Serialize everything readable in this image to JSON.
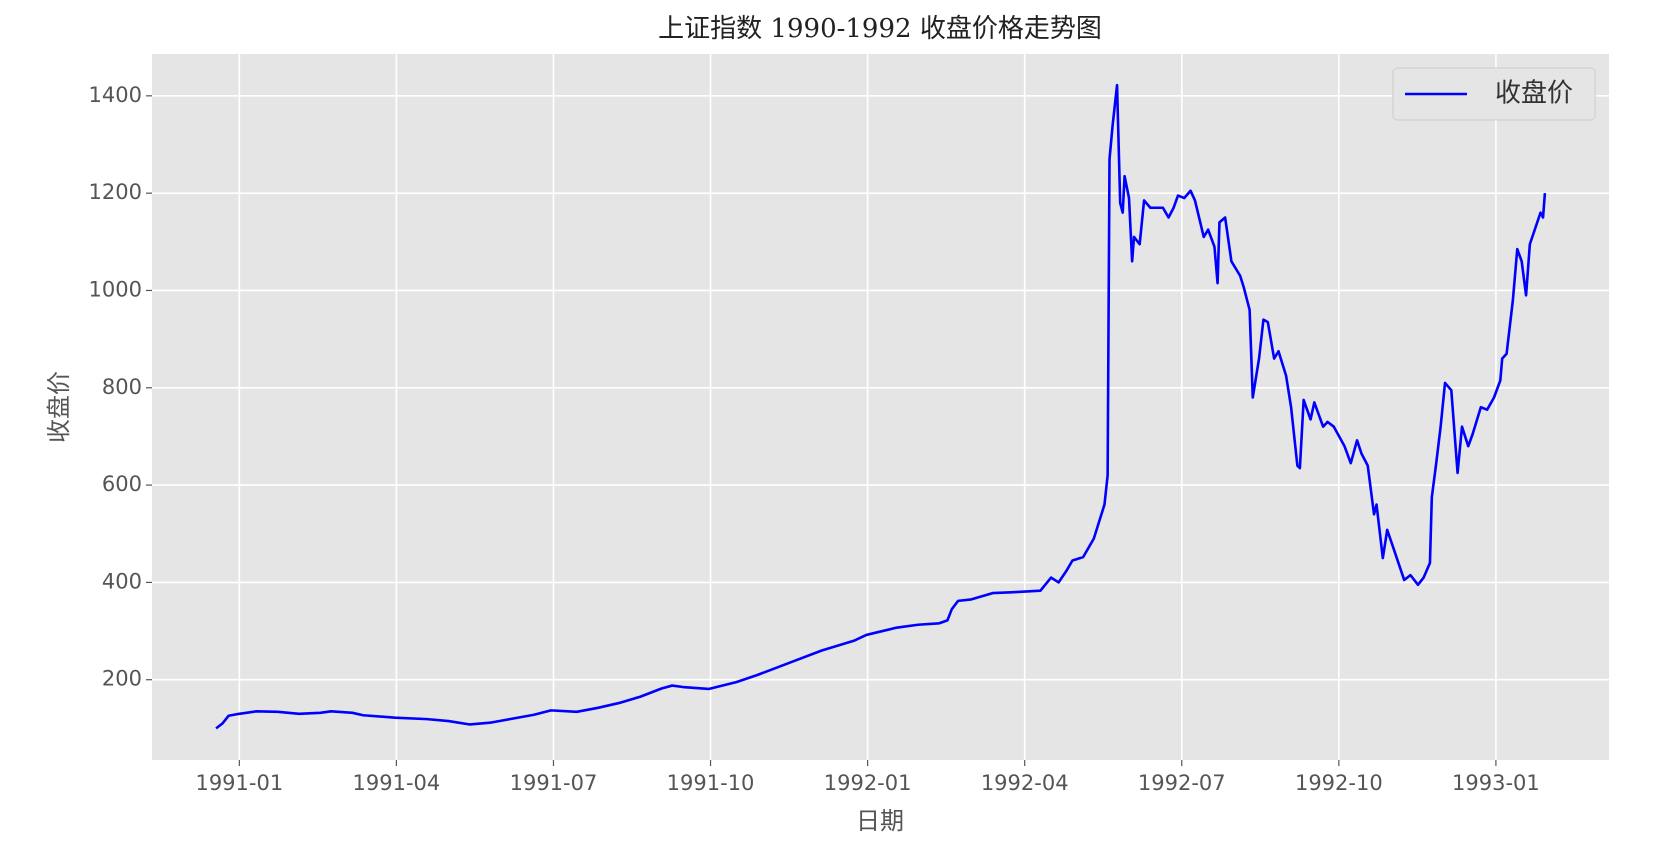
{
  "chart_data": {
    "type": "line",
    "title": "上证指数 1990-1992 收盘价格走势图",
    "x_label": "日期",
    "y_label": "收盘价",
    "x": [
      1990.963,
      1990.973,
      1990.983,
      1991.0,
      1991.027,
      1991.061,
      1991.095,
      1991.129,
      1991.146,
      1991.18,
      1991.197,
      1991.248,
      1991.299,
      1991.333,
      1991.367,
      1991.401,
      1991.435,
      1991.469,
      1991.496,
      1991.537,
      1991.57,
      1991.604,
      1991.638,
      1991.672,
      1991.689,
      1991.706,
      1991.747,
      1991.791,
      1991.825,
      1991.876,
      1991.927,
      1991.978,
      1991.998,
      1992.046,
      1992.08,
      1992.114,
      1992.127,
      1992.134,
      1992.144,
      1992.165,
      1992.199,
      1992.233,
      1992.275,
      1992.292,
      1992.304,
      1992.317,
      1992.326,
      1992.343,
      1992.36,
      1992.377,
      1992.382,
      1992.385,
      1992.39,
      1992.397,
      1992.402,
      1992.406,
      1992.409,
      1992.416,
      1992.421,
      1992.424,
      1992.433,
      1992.44,
      1992.45,
      1992.47,
      1992.479,
      1992.487,
      1992.494,
      1992.504,
      1992.514,
      1992.521,
      1992.535,
      1992.542,
      1992.552,
      1992.557,
      1992.56,
      1992.569,
      1992.579,
      1992.593,
      1992.599,
      1992.608,
      1992.613,
      1992.623,
      1992.63,
      1992.637,
      1992.647,
      1992.654,
      1992.666,
      1992.674,
      1992.684,
      1992.688,
      1992.694,
      1992.705,
      1992.711,
      1992.725,
      1992.732,
      1992.742,
      1992.759,
      1992.769,
      1992.779,
      1992.786,
      1992.796,
      1992.806,
      1992.81,
      1992.82,
      1992.827,
      1992.837,
      1992.854,
      1992.864,
      1992.876,
      1992.885,
      1992.895,
      1992.898,
      1992.905,
      1992.912,
      1992.919,
      1992.929,
      1992.939,
      1992.946,
      1992.956,
      1992.963,
      1992.976,
      1992.986,
      1992.997,
      1993.007,
      1993.01,
      1993.017,
      1993.027,
      1993.034,
      1993.041,
      1993.048,
      1993.054,
      1993.071,
      1993.075,
      1993.078
    ],
    "series": [
      {
        "name": "收盘价",
        "color": "#0000ff",
        "values": [
          100,
          110,
          126,
          130,
          135,
          134,
          130,
          132,
          135,
          132,
          127,
          122,
          119,
          115,
          108,
          112,
          120,
          128,
          137,
          134,
          142,
          152,
          165,
          182,
          188,
          185,
          181,
          195,
          210,
          235,
          260,
          280,
          292,
          307,
          313,
          316,
          322,
          345,
          362,
          365,
          378,
          380,
          383,
          410,
          400,
          425,
          445,
          452,
          490,
          560,
          620,
          1270,
          1340,
          1422,
          1180,
          1160,
          1235,
          1190,
          1060,
          1110,
          1095,
          1185,
          1170,
          1170,
          1150,
          1170,
          1195,
          1190,
          1205,
          1185,
          1110,
          1125,
          1090,
          1015,
          1140,
          1150,
          1060,
          1030,
          1005,
          960,
          780,
          860,
          940,
          935,
          860,
          875,
          825,
          760,
          640,
          635,
          775,
          735,
          770,
          720,
          730,
          720,
          680,
          645,
          692,
          665,
          640,
          540,
          560,
          450,
          508,
          470,
          405,
          415,
          395,
          410,
          440,
          575,
          645,
          720,
          810,
          795,
          625,
          720,
          680,
          705,
          760,
          755,
          780,
          815,
          860,
          870,
          980,
          1085,
          1060,
          990,
          1095,
          1160,
          1150,
          1200
        ]
      }
    ],
    "xlim": [
      1990.861,
      1993.18
    ],
    "xticks": [
      {
        "value": 1991.0,
        "label": "1991-01"
      },
      {
        "value": 1991.25,
        "label": "1991-04"
      },
      {
        "value": 1991.5,
        "label": "1991-07"
      },
      {
        "value": 1991.75,
        "label": "1991-10"
      },
      {
        "value": 1992.0,
        "label": "1992-01"
      },
      {
        "value": 1992.25,
        "label": "1992-04"
      },
      {
        "value": 1992.5,
        "label": "1992-07"
      },
      {
        "value": 1992.75,
        "label": "1992-10"
      },
      {
        "value": 1993.0,
        "label": "1993-01"
      }
    ],
    "ylim": [
      35,
      1486
    ],
    "yticks": [
      200,
      400,
      600,
      800,
      1000,
      1200,
      1400
    ],
    "grid": true,
    "legend": "upper right"
  }
}
